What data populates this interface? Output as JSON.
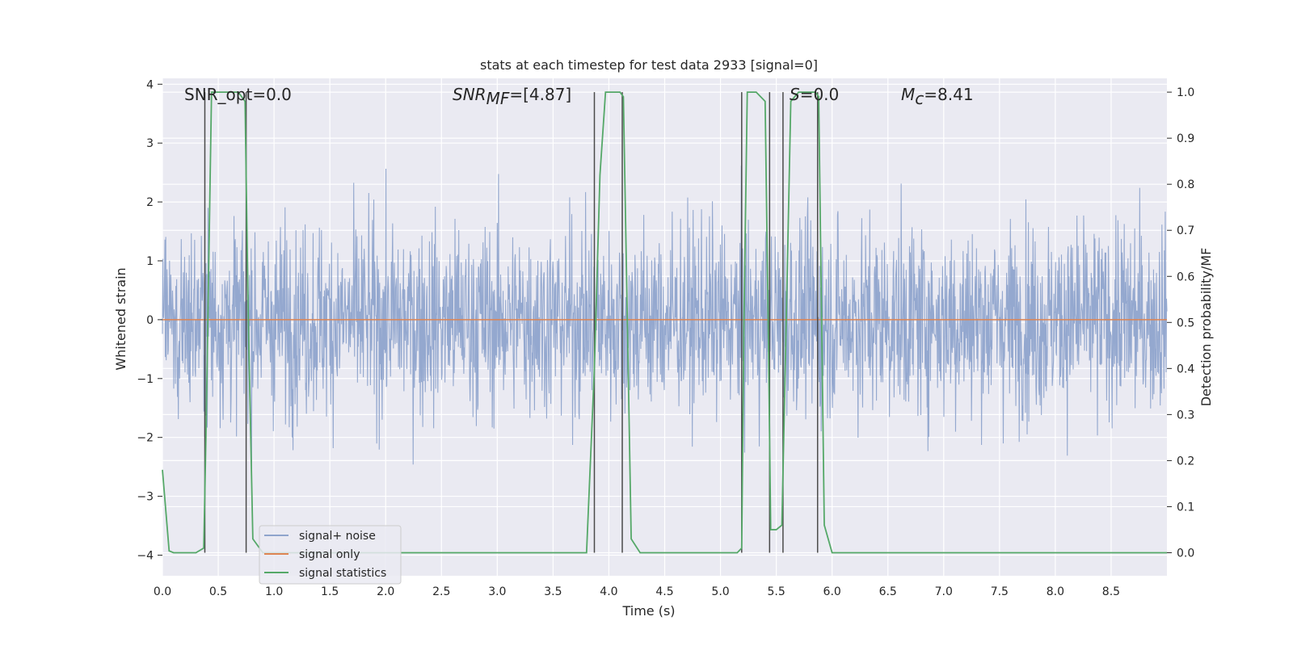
{
  "chart_data": {
    "type": "line",
    "title": "stats at each timestep for test data 2933 [signal=0]",
    "xlabel": "Time (s)",
    "ylabel_left": "Whitened strain",
    "ylabel_right": "Detection probability/MF",
    "xlim": [
      0.0,
      9.0
    ],
    "ylim_left": [
      -4.35,
      4.1
    ],
    "ylim_right": [
      -0.05,
      1.03
    ],
    "x_ticks": [
      "0.0",
      "0.5",
      "1.0",
      "1.5",
      "2.0",
      "2.5",
      "3.0",
      "3.5",
      "4.0",
      "4.5",
      "5.0",
      "5.5",
      "6.0",
      "6.5",
      "7.0",
      "7.5",
      "8.0",
      "8.5"
    ],
    "y_ticks_left": [
      "4",
      "3",
      "2",
      "1",
      "0",
      "−1",
      "−2",
      "−3",
      "−4"
    ],
    "y_ticks_right": [
      "1.0",
      "0.9",
      "0.8",
      "0.7",
      "0.6",
      "0.5",
      "0.4",
      "0.3",
      "0.2",
      "0.1",
      "0.0"
    ],
    "grid": true,
    "legend_position": "lower-left",
    "colors": {
      "noise": "#8fa4cc",
      "signal_only": "#dd8452",
      "statistics": "#55a868",
      "vlines": "#4a4a4a",
      "plot_bg": "#eaeaf2"
    },
    "annotations": {
      "snr_opt": "SNR_opt=0.0",
      "snr_mf_main": "SNR",
      "snr_mf_sub": "MF",
      "snr_mf_value": "=[4.87]",
      "s_main": "S",
      "s_value": "=0.0",
      "mc_main": "M",
      "mc_sub": "c",
      "mc_value": "=8.41"
    },
    "series": [
      {
        "name": "signal+ noise",
        "description_amplitude_std": 1.0,
        "clip_range": [
          -3.9,
          3.8
        ]
      },
      {
        "name": "signal only",
        "values_constant": 0.0
      },
      {
        "name": "signal statistics",
        "x": [
          0.0,
          0.06,
          0.1,
          0.3,
          0.37,
          0.39,
          0.44,
          0.5,
          0.6,
          0.68,
          0.74,
          0.77,
          0.81,
          0.9,
          3.8,
          3.87,
          3.92,
          3.97,
          4.1,
          4.13,
          4.2,
          4.28,
          5.15,
          5.19,
          5.21,
          5.24,
          5.32,
          5.4,
          5.43,
          5.45,
          5.5,
          5.55,
          5.58,
          5.63,
          5.7,
          5.85,
          5.88,
          5.93,
          6.0,
          9.0
        ],
        "values": [
          0.18,
          0.004,
          0.0,
          0.0,
          0.01,
          0.25,
          1.0,
          1.0,
          1.0,
          1.0,
          0.98,
          0.5,
          0.03,
          0.0,
          0.0,
          0.4,
          0.82,
          1.0,
          1.0,
          0.99,
          0.03,
          0.0,
          0.0,
          0.01,
          0.5,
          1.0,
          1.0,
          0.98,
          0.45,
          0.05,
          0.05,
          0.06,
          0.4,
          0.98,
          1.0,
          1.0,
          0.99,
          0.06,
          0.0,
          0.0
        ]
      }
    ],
    "vlines_x": [
      0.38,
      0.75,
      3.87,
      4.12,
      5.19,
      5.44,
      5.56,
      5.87
    ]
  }
}
